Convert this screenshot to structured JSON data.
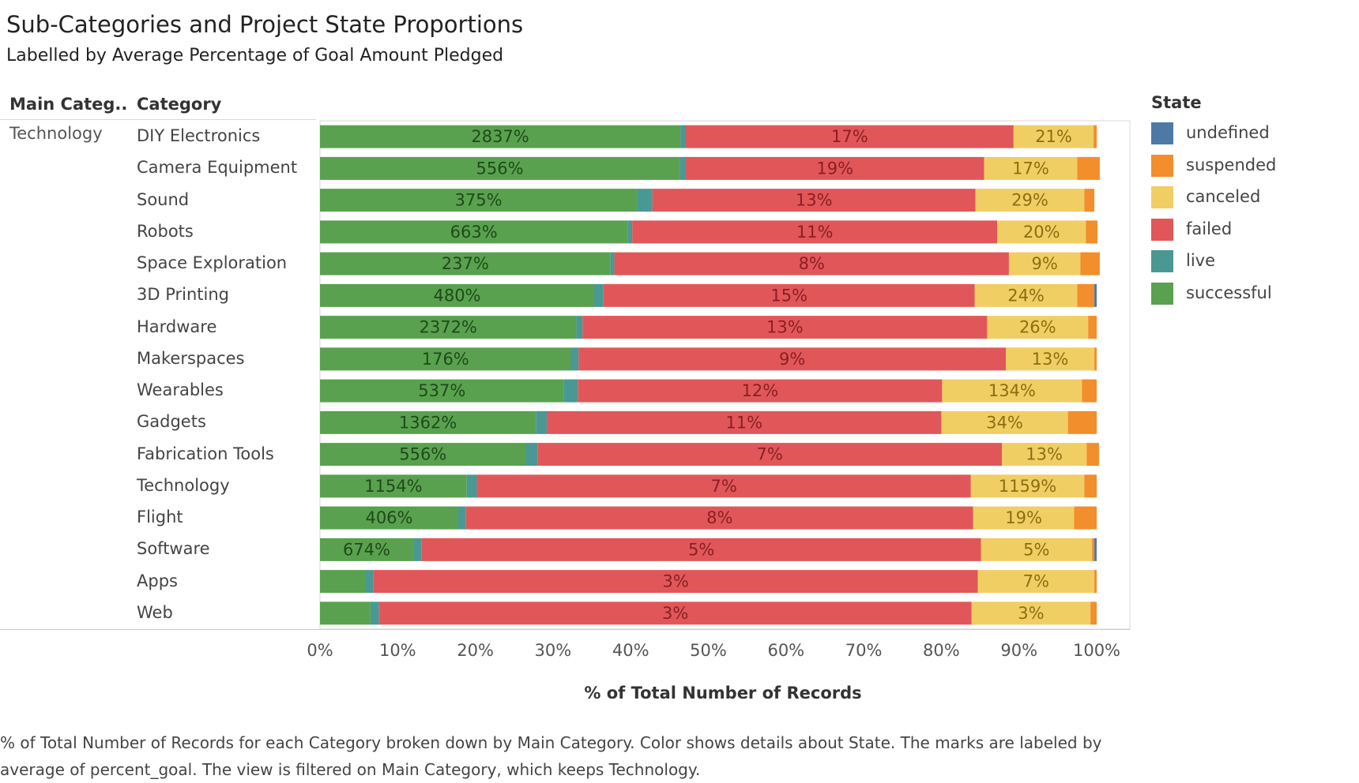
{
  "chart_data": {
    "type": "bar",
    "orientation": "horizontal",
    "stacked": true,
    "title": "Sub-Categories and Project State Proportions",
    "subtitle": "Labelled by Average Percentage of Goal Amount Pledged",
    "row_headers": {
      "main": "Main Categ..",
      "category": "Category"
    },
    "main_category": "Technology",
    "xlabel": "% of Total Number of Records",
    "xlim": [
      0,
      100
    ],
    "xticks": [
      "0%",
      "10%",
      "20%",
      "30%",
      "40%",
      "50%",
      "60%",
      "70%",
      "80%",
      "90%",
      "100%"
    ],
    "legend_title": "State",
    "legend_position": "right",
    "states": [
      "undefined",
      "suspended",
      "canceled",
      "failed",
      "live",
      "successful"
    ],
    "colors": {
      "undefined": "#4e79a7",
      "suspended": "#f28e2b",
      "canceled": "#f1ce63",
      "failed": "#e15759",
      "live": "#499894",
      "successful": "#59a14f"
    },
    "label_colors": {
      "successful": "#1f4a1a",
      "failed": "#8b1e22",
      "canceled": "#8a6e12"
    },
    "categories": [
      "DIY Electronics",
      "Camera Equipment",
      "Sound",
      "Robots",
      "Space Exploration",
      "3D Printing",
      "Hardware",
      "Makerspaces",
      "Wearables",
      "Gadgets",
      "Fabrication Tools",
      "Technology",
      "Flight",
      "Software",
      "Apps",
      "Web"
    ],
    "stack_order": [
      "successful",
      "live",
      "failed",
      "canceled",
      "suspended",
      "undefined"
    ],
    "series": [
      {
        "name": "successful",
        "values": [
          46.4,
          46.3,
          40.8,
          39.6,
          37.4,
          35.3,
          33.0,
          32.3,
          31.4,
          27.8,
          26.5,
          18.9,
          17.8,
          12.0,
          5.8,
          6.5
        ]
      },
      {
        "name": "live",
        "values": [
          0.7,
          0.8,
          2.0,
          0.6,
          0.5,
          1.2,
          0.8,
          1.0,
          1.8,
          1.4,
          1.5,
          1.3,
          1.0,
          1.1,
          1.1,
          1.1
        ]
      },
      {
        "name": "failed",
        "values": [
          42.2,
          38.4,
          41.6,
          47.0,
          50.8,
          47.8,
          52.1,
          55.0,
          46.9,
          50.8,
          59.8,
          63.6,
          65.3,
          72.0,
          77.8,
          76.3
        ]
      },
      {
        "name": "canceled",
        "values": [
          10.3,
          12.0,
          14.0,
          11.4,
          9.2,
          13.2,
          13.0,
          11.4,
          18.0,
          16.3,
          10.9,
          14.6,
          13.0,
          14.3,
          15.0,
          15.3
        ]
      },
      {
        "name": "suspended",
        "values": [
          0.4,
          2.9,
          1.3,
          1.5,
          2.5,
          2.2,
          1.1,
          0.3,
          1.9,
          3.7,
          1.6,
          1.6,
          2.9,
          0.3,
          0.3,
          0.8
        ]
      },
      {
        "name": "undefined",
        "values": [
          0,
          0,
          0,
          0,
          0,
          0.3,
          0,
          0,
          0,
          0,
          0,
          0,
          0,
          0.3,
          0,
          0
        ]
      }
    ],
    "mark_labels": {
      "successful": [
        "2837%",
        "556%",
        "375%",
        "663%",
        "237%",
        "480%",
        "2372%",
        "176%",
        "537%",
        "1362%",
        "556%",
        "1154%",
        "406%",
        "674%",
        "",
        ""
      ],
      "failed": [
        "17%",
        "19%",
        "13%",
        "11%",
        "8%",
        "15%",
        "13%",
        "9%",
        "12%",
        "11%",
        "7%",
        "7%",
        "8%",
        "5%",
        "3%",
        "3%"
      ],
      "canceled": [
        "21%",
        "17%",
        "29%",
        "20%",
        "9%",
        "24%",
        "26%",
        "13%",
        "134%",
        "34%",
        "13%",
        "1159%",
        "19%",
        "5%",
        "7%",
        "3%"
      ]
    },
    "grid": false
  },
  "caption": "% of Total Number of Records for each Category broken down by Main Category.  Color shows details about State.  The marks are labeled by average of percent_goal. The view is filtered on Main Category, which keeps Technology."
}
